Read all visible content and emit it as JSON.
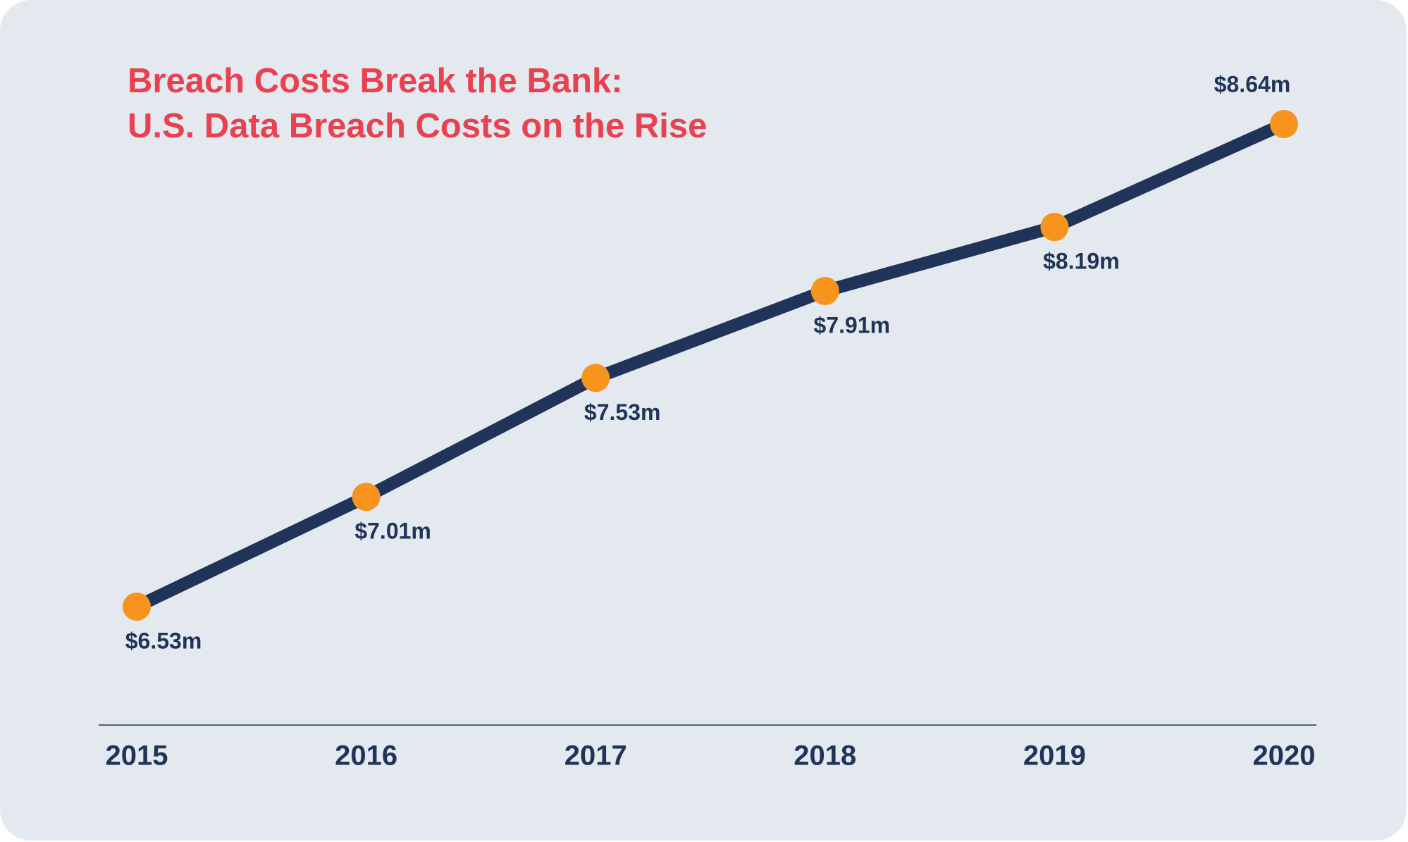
{
  "chart_data": {
    "type": "line",
    "title": [
      "Breach Costs Break the Bank:",
      "U.S. Data Breach Costs on the Rise"
    ],
    "categories": [
      "2015",
      "2016",
      "2017",
      "2018",
      "2019",
      "2020"
    ],
    "values": [
      6.53,
      7.01,
      7.53,
      7.91,
      8.19,
      8.64
    ],
    "value_labels": [
      "$6.53m",
      "$7.01m",
      "$7.53m",
      "$7.91m",
      "$8.19m",
      "$8.64m"
    ],
    "color": "#1f3458",
    "marker_color": "#f7941d",
    "grid": false
  }
}
